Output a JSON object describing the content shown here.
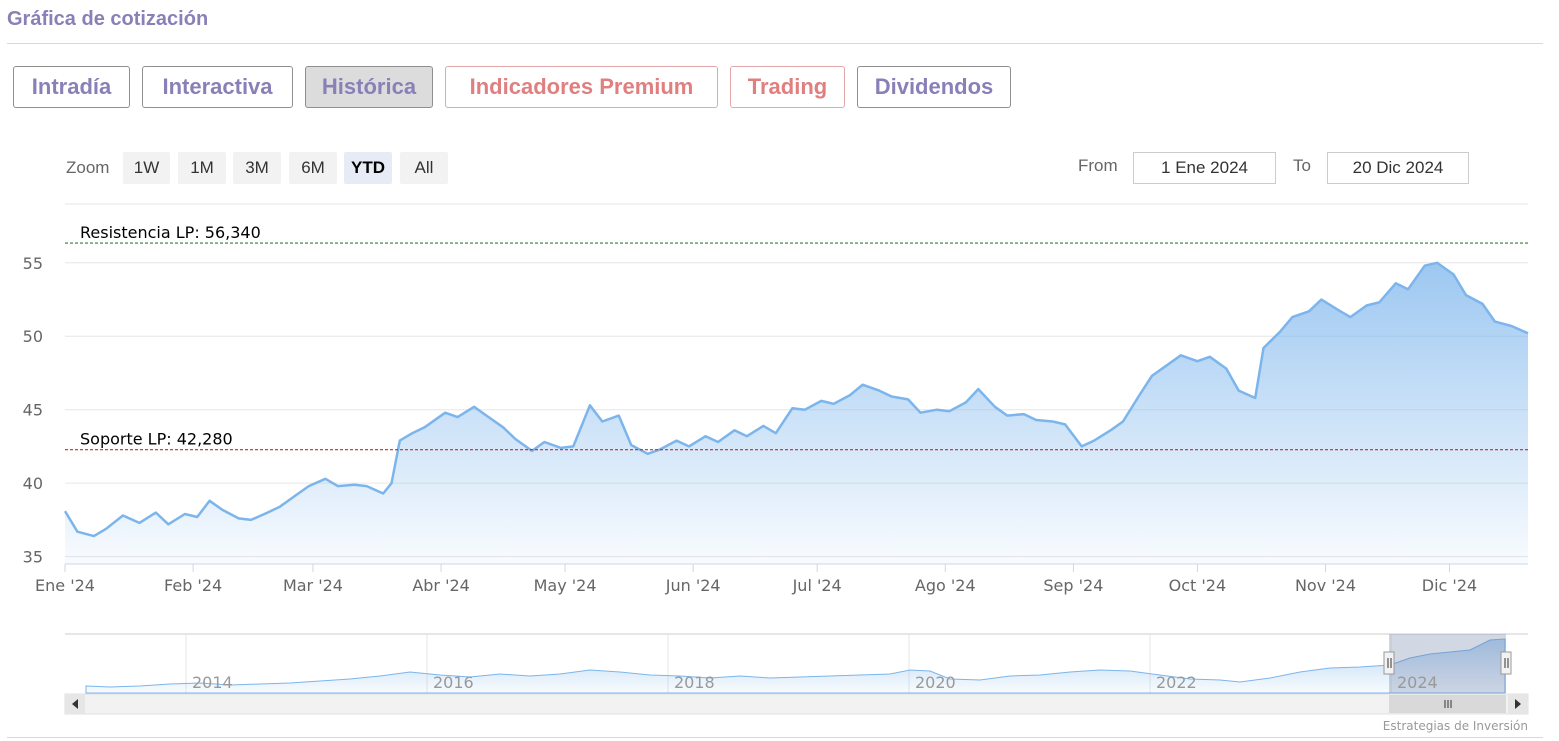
{
  "header": {
    "title": "Gráfica de cotización"
  },
  "tabs": [
    {
      "label": "Intradía",
      "active": false,
      "premium": false
    },
    {
      "label": "Interactiva",
      "active": false,
      "premium": false
    },
    {
      "label": "Histórica",
      "active": true,
      "premium": false
    },
    {
      "label": "Indicadores Premium",
      "active": false,
      "premium": true
    },
    {
      "label": "Trading",
      "active": false,
      "premium": true
    },
    {
      "label": "Dividendos",
      "active": false,
      "premium": false
    }
  ],
  "zoom": {
    "label": "Zoom",
    "buttons": [
      "1W",
      "1M",
      "3M",
      "6M",
      "YTD",
      "All"
    ],
    "selected": "YTD"
  },
  "range": {
    "from_label": "From",
    "from_value": "1 Ene 2024",
    "to_label": "To",
    "to_value": "20 Dic 2024"
  },
  "colors": {
    "accent": "#8a80b8",
    "premium": "#e07f7f",
    "line": "#7cb5ec",
    "resistance": "#2e7d32",
    "support": "#c62828"
  },
  "chart_data": {
    "type": "area",
    "title": "",
    "xlabel": "",
    "ylabel": "",
    "x_tick_labels": [
      "Ene '24",
      "Feb '24",
      "Mar '24",
      "Abr '24",
      "May '24",
      "Jun '24",
      "Jul '24",
      "Ago '24",
      "Sep '24",
      "Oct '24",
      "Nov '24",
      "Dic '24"
    ],
    "y_ticks": [
      35,
      40,
      45,
      50,
      55
    ],
    "ylim": [
      34.5,
      59
    ],
    "xlim": [
      "2024-01-01",
      "2024-12-20"
    ],
    "grid": true,
    "series": [
      {
        "points": [
          [
            "2024-01-01",
            38.1
          ],
          [
            "2024-01-04",
            36.7
          ],
          [
            "2024-01-08",
            36.4
          ],
          [
            "2024-01-11",
            36.9
          ],
          [
            "2024-01-15",
            37.8
          ],
          [
            "2024-01-19",
            37.3
          ],
          [
            "2024-01-23",
            38.0
          ],
          [
            "2024-01-26",
            37.2
          ],
          [
            "2024-01-30",
            37.9
          ],
          [
            "2024-02-02",
            37.7
          ],
          [
            "2024-02-05",
            38.8
          ],
          [
            "2024-02-08",
            38.2
          ],
          [
            "2024-02-12",
            37.6
          ],
          [
            "2024-02-15",
            37.5
          ],
          [
            "2024-02-19",
            38.0
          ],
          [
            "2024-02-22",
            38.4
          ],
          [
            "2024-02-26",
            39.2
          ],
          [
            "2024-02-29",
            39.8
          ],
          [
            "2024-03-04",
            40.3
          ],
          [
            "2024-03-07",
            39.8
          ],
          [
            "2024-03-11",
            39.9
          ],
          [
            "2024-03-14",
            39.8
          ],
          [
            "2024-03-18",
            39.3
          ],
          [
            "2024-03-20",
            40.0
          ],
          [
            "2024-03-22",
            42.9
          ],
          [
            "2024-03-25",
            43.4
          ],
          [
            "2024-03-28",
            43.8
          ],
          [
            "2024-04-02",
            44.8
          ],
          [
            "2024-04-05",
            44.5
          ],
          [
            "2024-04-09",
            45.2
          ],
          [
            "2024-04-12",
            44.6
          ],
          [
            "2024-04-16",
            43.8
          ],
          [
            "2024-04-19",
            43.0
          ],
          [
            "2024-04-23",
            42.2
          ],
          [
            "2024-04-26",
            42.8
          ],
          [
            "2024-04-30",
            42.4
          ],
          [
            "2024-05-03",
            42.5
          ],
          [
            "2024-05-07",
            45.3
          ],
          [
            "2024-05-10",
            44.2
          ],
          [
            "2024-05-14",
            44.6
          ],
          [
            "2024-05-17",
            42.6
          ],
          [
            "2024-05-21",
            42.0
          ],
          [
            "2024-05-24",
            42.3
          ],
          [
            "2024-05-28",
            42.9
          ],
          [
            "2024-05-31",
            42.5
          ],
          [
            "2024-06-04",
            43.2
          ],
          [
            "2024-06-07",
            42.8
          ],
          [
            "2024-06-11",
            43.6
          ],
          [
            "2024-06-14",
            43.2
          ],
          [
            "2024-06-18",
            43.9
          ],
          [
            "2024-06-21",
            43.4
          ],
          [
            "2024-06-25",
            45.1
          ],
          [
            "2024-06-28",
            45.0
          ],
          [
            "2024-07-02",
            45.6
          ],
          [
            "2024-07-05",
            45.4
          ],
          [
            "2024-07-09",
            46.0
          ],
          [
            "2024-07-12",
            46.7
          ],
          [
            "2024-07-16",
            46.3
          ],
          [
            "2024-07-19",
            45.9
          ],
          [
            "2024-07-23",
            45.7
          ],
          [
            "2024-07-26",
            44.8
          ],
          [
            "2024-07-30",
            45.0
          ],
          [
            "2024-08-02",
            44.9
          ],
          [
            "2024-08-06",
            45.5
          ],
          [
            "2024-08-09",
            46.4
          ],
          [
            "2024-08-13",
            45.2
          ],
          [
            "2024-08-16",
            44.6
          ],
          [
            "2024-08-20",
            44.7
          ],
          [
            "2024-08-23",
            44.3
          ],
          [
            "2024-08-27",
            44.2
          ],
          [
            "2024-08-30",
            44.0
          ],
          [
            "2024-09-03",
            42.5
          ],
          [
            "2024-09-06",
            42.9
          ],
          [
            "2024-09-10",
            43.6
          ],
          [
            "2024-09-13",
            44.2
          ],
          [
            "2024-09-17",
            46.0
          ],
          [
            "2024-09-20",
            47.3
          ],
          [
            "2024-09-24",
            48.1
          ],
          [
            "2024-09-27",
            48.7
          ],
          [
            "2024-10-01",
            48.3
          ],
          [
            "2024-10-04",
            48.6
          ],
          [
            "2024-10-08",
            47.8
          ],
          [
            "2024-10-11",
            46.3
          ],
          [
            "2024-10-15",
            45.8
          ],
          [
            "2024-10-17",
            49.2
          ],
          [
            "2024-10-21",
            50.3
          ],
          [
            "2024-10-24",
            51.3
          ],
          [
            "2024-10-28",
            51.7
          ],
          [
            "2024-10-31",
            52.5
          ],
          [
            "2024-11-04",
            51.8
          ],
          [
            "2024-11-07",
            51.3
          ],
          [
            "2024-11-11",
            52.1
          ],
          [
            "2024-11-14",
            52.3
          ],
          [
            "2024-11-18",
            53.6
          ],
          [
            "2024-11-21",
            53.2
          ],
          [
            "2024-11-25",
            54.8
          ],
          [
            "2024-11-28",
            55.0
          ],
          [
            "2024-12-02",
            54.2
          ],
          [
            "2024-12-05",
            52.8
          ],
          [
            "2024-12-09",
            52.2
          ],
          [
            "2024-12-12",
            51.0
          ],
          [
            "2024-12-16",
            50.7
          ],
          [
            "2024-12-20",
            50.2
          ]
        ]
      }
    ],
    "annotations": [
      {
        "label": "Resistencia LP: 56,340",
        "value": 56.34,
        "style": "dashed",
        "color": "#2e7d32"
      },
      {
        "label": "Soporte LP: 42,280",
        "value": 42.28,
        "style": "dashed",
        "color": "#c62828"
      }
    ],
    "navigator": {
      "x_tick_labels": [
        "2014",
        "2016",
        "2018",
        "2020",
        "2022",
        "2024"
      ],
      "selected_range": "YTD"
    },
    "credit": "Estrategias de Inversión"
  }
}
